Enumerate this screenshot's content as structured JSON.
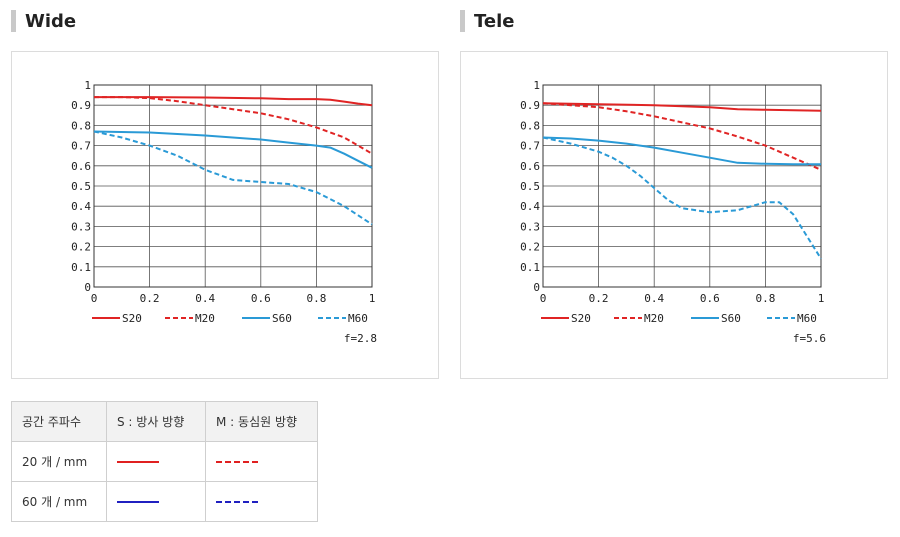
{
  "charts": {
    "wide": {
      "title": "Wide",
      "fstop": "f=2.8"
    },
    "tele": {
      "title": "Tele",
      "fstop": "f=5.6"
    }
  },
  "legend": [
    "S20",
    "M20",
    "S60",
    "M60"
  ],
  "x_ticks": [
    "0",
    "0.2",
    "0.4",
    "0.6",
    "0.8",
    "1"
  ],
  "y_ticks": [
    "0",
    "0.1",
    "0.2",
    "0.3",
    "0.4",
    "0.5",
    "0.6",
    "0.7",
    "0.8",
    "0.9",
    "1"
  ],
  "colors": {
    "red": "#e02424",
    "blue": "#2a9ad6",
    "table_red": "#e02020",
    "table_blue": "#2020c0"
  },
  "table": {
    "header": [
      "공간 주파수",
      "S : 방사 방향",
      "M : 동심원 방향"
    ],
    "rows": [
      {
        "label": "20 개 / mm",
        "s_color": "#e02020",
        "m_color": "#e02020"
      },
      {
        "label": "60 개 / mm",
        "s_color": "#2020c0",
        "m_color": "#2020c0"
      }
    ]
  },
  "chart_data": [
    {
      "type": "line",
      "title": "Wide",
      "annotation": "f=2.8",
      "xlim": [
        0,
        1
      ],
      "ylim": [
        0,
        1
      ],
      "grid": true,
      "legend_position": "bottom",
      "series": [
        {
          "name": "S20",
          "color": "#e02424",
          "dashed": false,
          "x": [
            0,
            0.2,
            0.4,
            0.6,
            0.7,
            0.8,
            0.85,
            0.9,
            0.95,
            1
          ],
          "y": [
            0.94,
            0.94,
            0.938,
            0.934,
            0.93,
            0.93,
            0.927,
            0.918,
            0.908,
            0.9
          ]
        },
        {
          "name": "M20",
          "color": "#e02424",
          "dashed": true,
          "x": [
            0,
            0.1,
            0.2,
            0.3,
            0.4,
            0.5,
            0.6,
            0.7,
            0.8,
            0.9,
            1
          ],
          "y": [
            0.94,
            0.94,
            0.935,
            0.92,
            0.9,
            0.88,
            0.86,
            0.83,
            0.79,
            0.74,
            0.66
          ]
        },
        {
          "name": "S60",
          "color": "#2a9ad6",
          "dashed": false,
          "x": [
            0,
            0.2,
            0.4,
            0.6,
            0.7,
            0.8,
            0.85,
            0.9,
            0.95,
            1
          ],
          "y": [
            0.77,
            0.765,
            0.75,
            0.73,
            0.715,
            0.7,
            0.69,
            0.66,
            0.625,
            0.59
          ]
        },
        {
          "name": "M60",
          "color": "#2a9ad6",
          "dashed": true,
          "x": [
            0,
            0.1,
            0.2,
            0.3,
            0.4,
            0.5,
            0.6,
            0.7,
            0.8,
            0.9,
            1
          ],
          "y": [
            0.77,
            0.74,
            0.7,
            0.65,
            0.58,
            0.53,
            0.52,
            0.51,
            0.47,
            0.4,
            0.31
          ]
        }
      ]
    },
    {
      "type": "line",
      "title": "Tele",
      "annotation": "f=5.6",
      "xlim": [
        0,
        1
      ],
      "ylim": [
        0,
        1
      ],
      "grid": true,
      "legend_position": "bottom",
      "series": [
        {
          "name": "S20",
          "color": "#e02424",
          "dashed": false,
          "x": [
            0,
            0.2,
            0.4,
            0.6,
            0.7,
            0.8,
            0.9,
            1
          ],
          "y": [
            0.91,
            0.905,
            0.9,
            0.89,
            0.88,
            0.877,
            0.875,
            0.873
          ]
        },
        {
          "name": "M20",
          "color": "#e02424",
          "dashed": true,
          "x": [
            0,
            0.1,
            0.2,
            0.3,
            0.4,
            0.5,
            0.6,
            0.7,
            0.8,
            0.9,
            1
          ],
          "y": [
            0.91,
            0.9,
            0.89,
            0.87,
            0.845,
            0.815,
            0.785,
            0.745,
            0.7,
            0.64,
            0.58
          ]
        },
        {
          "name": "S60",
          "color": "#2a9ad6",
          "dashed": false,
          "x": [
            0,
            0.1,
            0.2,
            0.3,
            0.4,
            0.5,
            0.6,
            0.7,
            0.8,
            0.9,
            1
          ],
          "y": [
            0.74,
            0.735,
            0.725,
            0.71,
            0.69,
            0.665,
            0.64,
            0.615,
            0.61,
            0.608,
            0.608
          ]
        },
        {
          "name": "M60",
          "color": "#2a9ad6",
          "dashed": true,
          "x": [
            0,
            0.1,
            0.2,
            0.25,
            0.3,
            0.35,
            0.4,
            0.45,
            0.5,
            0.6,
            0.7,
            0.75,
            0.8,
            0.85,
            0.9,
            0.95,
            1
          ],
          "y": [
            0.74,
            0.71,
            0.67,
            0.64,
            0.6,
            0.55,
            0.49,
            0.43,
            0.39,
            0.37,
            0.38,
            0.4,
            0.42,
            0.42,
            0.36,
            0.25,
            0.14
          ]
        }
      ]
    }
  ]
}
